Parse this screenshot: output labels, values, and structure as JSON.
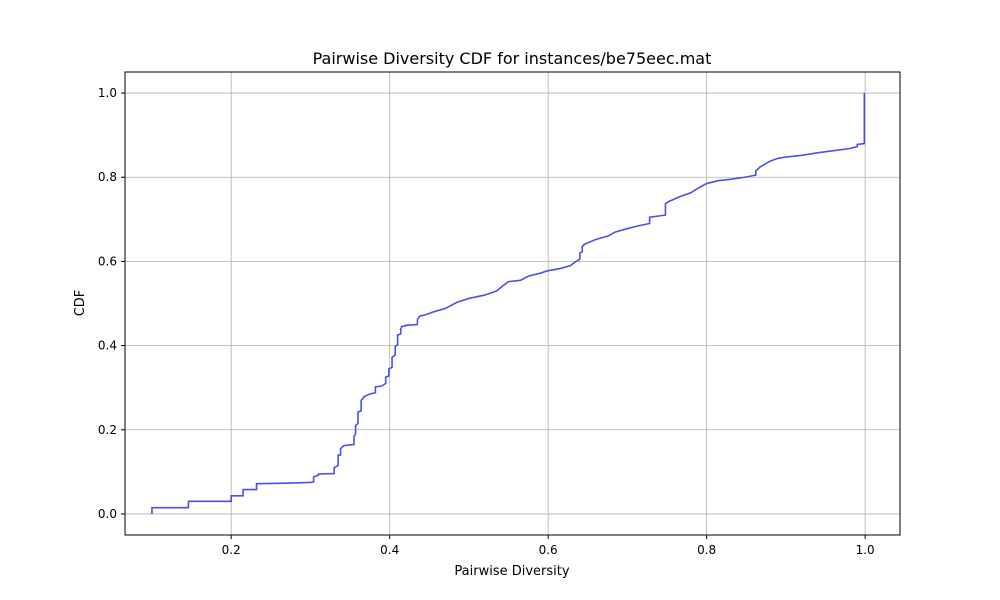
{
  "chart_data": {
    "type": "line",
    "title": "Pairwise Diversity CDF for instances/be75eec.mat",
    "xlabel": "Pairwise Diversity",
    "ylabel": "CDF",
    "xlim": [
      0.066,
      1.044
    ],
    "ylim": [
      -0.05,
      1.05
    ],
    "xticks": [
      0.2,
      0.4,
      0.6,
      0.8,
      1.0
    ],
    "xtick_labels": [
      "0.2",
      "0.4",
      "0.6",
      "0.8",
      "1.0"
    ],
    "yticks": [
      0.0,
      0.2,
      0.4,
      0.6,
      0.8,
      1.0
    ],
    "ytick_labels": [
      "0.0",
      "0.2",
      "0.4",
      "0.6",
      "0.8",
      "1.0"
    ],
    "grid": true,
    "series": [
      {
        "color": "#4444ee",
        "step": true,
        "x": [
          0.1,
          0.1,
          0.146,
          0.146,
          0.2,
          0.2,
          0.215,
          0.215,
          0.232,
          0.232,
          0.27,
          0.3,
          0.304,
          0.304,
          0.31,
          0.31,
          0.33,
          0.33,
          0.335,
          0.335,
          0.338,
          0.338,
          0.342,
          0.345,
          0.355,
          0.355,
          0.357,
          0.357,
          0.36,
          0.36,
          0.364,
          0.364,
          0.367,
          0.367,
          0.375,
          0.382,
          0.382,
          0.39,
          0.395,
          0.395,
          0.399,
          0.399,
          0.403,
          0.403,
          0.407,
          0.407,
          0.41,
          0.41,
          0.414,
          0.414,
          0.415,
          0.415,
          0.42,
          0.42,
          0.435,
          0.435,
          0.438,
          0.445,
          0.455,
          0.47,
          0.485,
          0.5,
          0.52,
          0.535,
          0.545,
          0.55,
          0.565,
          0.575,
          0.59,
          0.6,
          0.615,
          0.628,
          0.635,
          0.64,
          0.64,
          0.643,
          0.643,
          0.645,
          0.645,
          0.66,
          0.675,
          0.685,
          0.7,
          0.715,
          0.728,
          0.728,
          0.748,
          0.748,
          0.752,
          0.765,
          0.78,
          0.79,
          0.8,
          0.815,
          0.83,
          0.848,
          0.862,
          0.862,
          0.868,
          0.88,
          0.89,
          0.9,
          0.92,
          0.94,
          0.96,
          0.98,
          0.99,
          0.99,
          0.999,
          0.999
        ],
        "y": [
          0.0,
          0.015,
          0.015,
          0.03,
          0.03,
          0.043,
          0.043,
          0.058,
          0.058,
          0.072,
          0.073,
          0.075,
          0.076,
          0.088,
          0.092,
          0.095,
          0.096,
          0.11,
          0.115,
          0.14,
          0.14,
          0.155,
          0.162,
          0.163,
          0.165,
          0.185,
          0.19,
          0.21,
          0.215,
          0.242,
          0.245,
          0.27,
          0.276,
          0.278,
          0.285,
          0.288,
          0.302,
          0.304,
          0.31,
          0.325,
          0.328,
          0.345,
          0.348,
          0.372,
          0.378,
          0.398,
          0.402,
          0.425,
          0.428,
          0.44,
          0.443,
          0.445,
          0.447,
          0.448,
          0.45,
          0.462,
          0.47,
          0.473,
          0.48,
          0.488,
          0.503,
          0.512,
          0.52,
          0.53,
          0.545,
          0.552,
          0.555,
          0.565,
          0.572,
          0.578,
          0.583,
          0.59,
          0.6,
          0.605,
          0.62,
          0.623,
          0.636,
          0.638,
          0.64,
          0.652,
          0.66,
          0.67,
          0.678,
          0.685,
          0.69,
          0.705,
          0.71,
          0.737,
          0.742,
          0.753,
          0.763,
          0.775,
          0.785,
          0.792,
          0.795,
          0.8,
          0.805,
          0.815,
          0.825,
          0.838,
          0.845,
          0.848,
          0.852,
          0.858,
          0.863,
          0.868,
          0.873,
          0.878,
          0.88,
          1.0
        ]
      }
    ]
  }
}
